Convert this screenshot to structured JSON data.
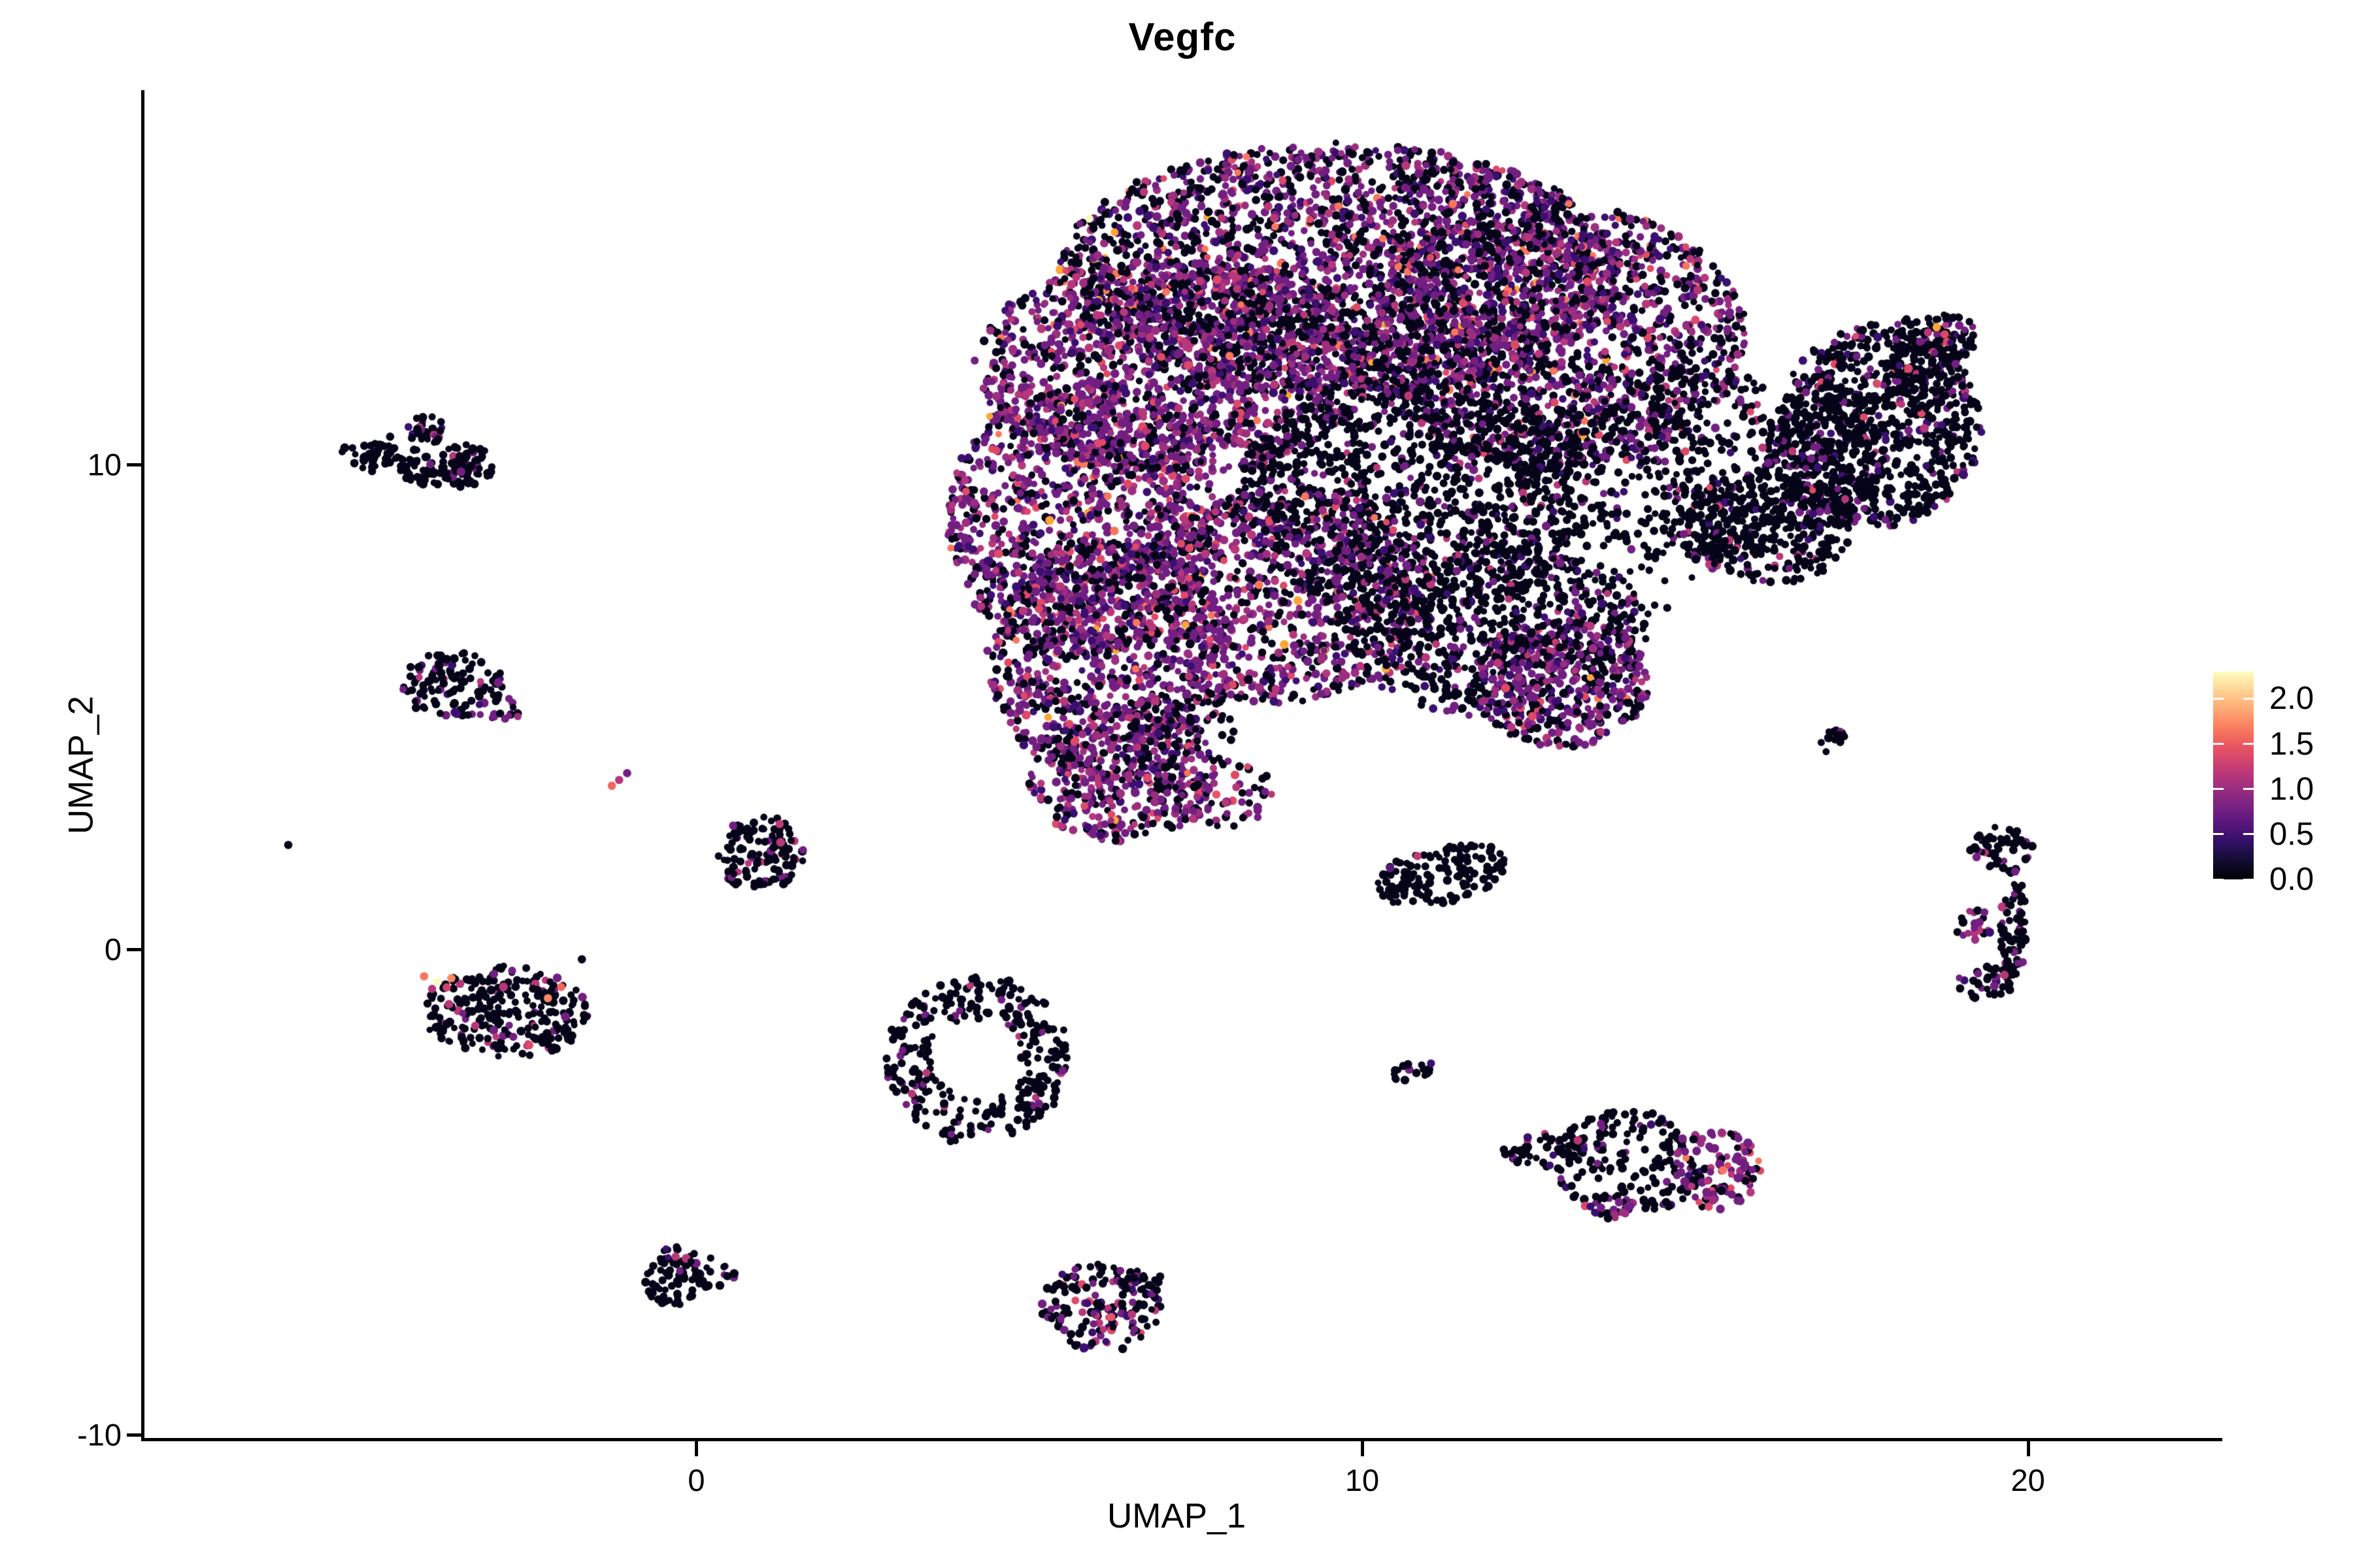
{
  "chart_data": {
    "type": "scatter",
    "title": "Vegfc",
    "xlabel": "UMAP_1",
    "ylabel": "UMAP_2",
    "grid": false,
    "axes": {
      "x": {
        "range": [
          -8.3,
          22.9
        ],
        "ticks": [
          {
            "label": "0",
            "value": 0
          },
          {
            "label": "10",
            "value": 10
          },
          {
            "label": "20",
            "value": 20
          }
        ]
      },
      "y": {
        "range": [
          -10.1,
          17.7
        ],
        "ticks": [
          {
            "label": "10",
            "value": 10
          },
          {
            "label": "0",
            "value": 0
          },
          {
            "label": "-10",
            "value": -10
          }
        ]
      }
    },
    "legend": {
      "position": "right",
      "title": "",
      "values": [
        {
          "label": "2.0",
          "value": 2.0
        },
        {
          "label": "1.5",
          "value": 1.5
        },
        {
          "label": "1.0",
          "value": 1.0
        },
        {
          "label": "0.5",
          "value": 0.5
        },
        {
          "label": "0.0",
          "value": 0.0
        }
      ],
      "value_max": 2.3,
      "colormap_name": "magma",
      "gradient_stops_bottom_to_top": [
        "#000004",
        "#120d31",
        "#331068",
        "#5a167e",
        "#7d2482",
        "#a3307e",
        "#c83e73",
        "#e95462",
        "#f97b5d",
        "#fea973",
        "#fed395",
        "#fcfdbf"
      ]
    },
    "point_radius_px": 5.5,
    "palettes": {
      "mainMix": {
        "#050418": 0.42,
        "#3b0f70": 0.12,
        "#721f81": 0.26,
        "#9c2e7f": 0.1,
        "#b73779": 0.05,
        "#de4968": 0.03,
        "#f8765c": 0.015,
        "#fca636": 0.004,
        "#fcfdbf": 0.001
      },
      "purpleRich": {
        "#050418": 0.3,
        "#3b0f70": 0.12,
        "#721f81": 0.34,
        "#9c2e7f": 0.12,
        "#b73779": 0.07,
        "#de4968": 0.035,
        "#f8765c": 0.012,
        "#fca636": 0.003
      },
      "blackHeavy": {
        "#050418": 0.83,
        "#3b0f70": 0.05,
        "#721f81": 0.09,
        "#b73779": 0.02,
        "#de4968": 0.01
      },
      "blackOnly": {
        "#050418": 1
      },
      "blackSprinkle": {
        "#050418": 0.88,
        "#721f81": 0.09,
        "#b73779": 0.03
      },
      "blackSprinkle2": {
        "#050418": 0.8,
        "#3b0f70": 0.05,
        "#721f81": 0.12,
        "#b73779": 0.03
      },
      "richSmall": {
        "#050418": 0.28,
        "#721f81": 0.38,
        "#9c2e7f": 0.16,
        "#b73779": 0.1,
        "#de4968": 0.06,
        "#f8765c": 0.02
      },
      "richDark": {
        "#050418": 0.55,
        "#3b0f70": 0.08,
        "#721f81": 0.22,
        "#b73779": 0.1,
        "#de4968": 0.05
      }
    },
    "clusters": [
      {
        "name": "main-top-arc",
        "cx": 9.66,
        "cy": 13.99,
        "rx": 4.22,
        "ry": 2.64,
        "n": 2600,
        "palette": "mainMix"
      },
      {
        "name": "main-left-shoulder",
        "cx": 7.11,
        "cy": 12.03,
        "rx": 2.94,
        "ry": 2.23,
        "n": 1250,
        "palette": "purpleRich"
      },
      {
        "name": "main-left-arm",
        "cx": 5.78,
        "cy": 8.85,
        "rx": 2.01,
        "ry": 2.91,
        "n": 1150,
        "palette": "purpleRich"
      },
      {
        "name": "main-left-lower",
        "cx": 6.18,
        "cy": 5.95,
        "rx": 1.81,
        "ry": 2.5,
        "n": 800,
        "palette": "purpleRich"
      },
      {
        "name": "main-left-tip",
        "cx": 6.37,
        "cy": 3.65,
        "rx": 1.42,
        "ry": 1.42,
        "n": 330,
        "palette": "purpleRich"
      },
      {
        "name": "main-right-upper",
        "cx": 12.89,
        "cy": 12.64,
        "rx": 2.89,
        "ry": 2.77,
        "n": 1500,
        "palette": "mainMix"
      },
      {
        "name": "main-right-mid",
        "cx": 14.46,
        "cy": 10.14,
        "rx": 2.3,
        "ry": 2.09,
        "n": 430,
        "palette": "blackHeavy"
      },
      {
        "name": "main-neck",
        "cx": 16.03,
        "cy": 8.65,
        "rx": 1.32,
        "ry": 1.15,
        "n": 330,
        "palette": "blackHeavy"
      },
      {
        "name": "main-belly",
        "cx": 10.74,
        "cy": 9.32,
        "rx": 2.7,
        "ry": 2.36,
        "n": 1000,
        "palette": "blackSprinkle2"
      },
      {
        "name": "main-center-low",
        "cx": 8.82,
        "cy": 7.3,
        "rx": 2.3,
        "ry": 2.23,
        "n": 850,
        "palette": "purpleRich"
      },
      {
        "name": "main-lower-right",
        "cx": 12.01,
        "cy": 6.62,
        "rx": 2.3,
        "ry": 1.82,
        "n": 650,
        "palette": "blackSprinkle2"
      },
      {
        "name": "main-lower-right2",
        "cx": 12.99,
        "cy": 5.54,
        "rx": 1.32,
        "ry": 1.35,
        "n": 430,
        "palette": "purpleRich"
      },
      {
        "name": "main-sparse-fill",
        "cx": 11.81,
        "cy": 9.26,
        "rx": 3.73,
        "ry": 3.38,
        "n": 260,
        "palette": "blackOnly"
      },
      {
        "name": "main-tail",
        "cx": 7.75,
        "cy": 3.24,
        "rx": 0.98,
        "ry": 0.74,
        "n": 90,
        "palette": "richSmall"
      },
      {
        "name": "main-tail-upper",
        "cx": 7.35,
        "cy": 4.53,
        "rx": 0.83,
        "ry": 0.88,
        "n": 60,
        "palette": "blackSprinkle2"
      },
      {
        "name": "right-teardrop",
        "cx": 17.79,
        "cy": 10.81,
        "rx": 1.52,
        "ry": 2.09,
        "n": 700,
        "palette": "blackHeavy"
      },
      {
        "name": "right-teardrop-left",
        "cx": 16.91,
        "cy": 10.2,
        "rx": 0.93,
        "ry": 1.55,
        "n": 250,
        "palette": "blackHeavy"
      },
      {
        "name": "right-teardrop-tiparm",
        "cx": 18.38,
        "cy": 12.09,
        "rx": 0.59,
        "ry": 1.01,
        "n": 120,
        "palette": "blackHeavy"
      },
      {
        "name": "right-teardrop-tip",
        "cx": 18.82,
        "cy": 12.57,
        "rx": 0.44,
        "ry": 0.54,
        "n": 60,
        "palette": "blackHeavy"
      },
      {
        "name": "tl-small-upper",
        "cx": -4.07,
        "cy": 10.72,
        "rx": 0.27,
        "ry": 0.35,
        "n": 30,
        "palette": "blackSprinkle2"
      },
      {
        "name": "tl-small-left",
        "cx": -4.92,
        "cy": 10.2,
        "rx": 0.44,
        "ry": 0.32,
        "n": 40,
        "palette": "blackOnly"
      },
      {
        "name": "tl-small-main",
        "cx": -3.75,
        "cy": 9.99,
        "rx": 0.76,
        "ry": 0.46,
        "n": 110,
        "palette": "blackSprinkle"
      },
      {
        "name": "left-mid-cluster",
        "cx": -3.66,
        "cy": 5.47,
        "rx": 0.76,
        "ry": 0.7,
        "n": 110,
        "palette": "blackSprinkle2"
      },
      {
        "name": "left-mid-tail",
        "cx": -2.93,
        "cy": 4.96,
        "rx": 0.37,
        "ry": 0.22,
        "n": 18,
        "palette": "purpleRich"
      },
      {
        "name": "left-small-cluster",
        "cx": 0.95,
        "cy": 2.0,
        "rx": 0.67,
        "ry": 0.76,
        "n": 120,
        "palette": "blackSprinkle"
      },
      {
        "name": "left-big-cluster",
        "cx": -2.86,
        "cy": -1.31,
        "rx": 1.23,
        "ry": 0.97,
        "n": 260,
        "palette": "blackSprinkle"
      },
      {
        "name": "ring-cluster",
        "cx": 4.22,
        "cy": -2.26,
        "rx": 1.37,
        "ry": 1.76,
        "n": 330,
        "palette": "blackSprinkle",
        "inner": 0.49
      },
      {
        "name": "center-snake",
        "cx": 11.18,
        "cy": 1.55,
        "rx": 1.03,
        "ry": 0.57,
        "n": 130,
        "palette": "blackOnly",
        "rot": 0.35
      },
      {
        "name": "tiny-mid",
        "cx": 10.78,
        "cy": -2.53,
        "rx": 0.33,
        "ry": 0.22,
        "n": 18,
        "palette": "blackSprinkle2",
        "rot": 0.4
      },
      {
        "name": "tiny-right-diag",
        "cx": 17.04,
        "cy": 4.32,
        "rx": 0.29,
        "ry": 0.19,
        "n": 14,
        "palette": "blackSprinkle2",
        "rot": 0.9
      },
      {
        "name": "right-small-top",
        "cx": 19.59,
        "cy": 2.09,
        "rx": 0.47,
        "ry": 0.43,
        "n": 55,
        "palette": "blackSprinkle"
      },
      {
        "name": "right-c-vertical",
        "cx": 19.77,
        "cy": 0.47,
        "rx": 0.2,
        "ry": 1.28,
        "n": 90,
        "palette": "blackSprinkle"
      },
      {
        "name": "right-c-bottom",
        "cx": 19.36,
        "cy": -0.68,
        "rx": 0.44,
        "ry": 0.34,
        "n": 30,
        "palette": "blackSprinkle2"
      },
      {
        "name": "right-c-leftblob",
        "cx": 19.19,
        "cy": 0.47,
        "rx": 0.27,
        "ry": 0.38,
        "n": 20,
        "palette": "purpleRich"
      },
      {
        "name": "br-left-arm",
        "cx": 12.75,
        "cy": -4.15,
        "rx": 0.64,
        "ry": 0.35,
        "n": 45,
        "palette": "blackSprinkle2",
        "rot": 0.1
      },
      {
        "name": "br-middle",
        "cx": 13.97,
        "cy": -4.42,
        "rx": 1.13,
        "ry": 1.11,
        "n": 170,
        "palette": "blackSprinkle2"
      },
      {
        "name": "br-right-lobe",
        "cx": 15.34,
        "cy": -4.53,
        "rx": 0.64,
        "ry": 0.84,
        "n": 110,
        "palette": "richSmall"
      },
      {
        "name": "br-lower-arm",
        "cx": 13.79,
        "cy": -5.3,
        "rx": 0.49,
        "ry": 0.27,
        "n": 25,
        "palette": "purpleRich"
      },
      {
        "name": "bottom-center",
        "cx": 6.08,
        "cy": -7.39,
        "rx": 0.9,
        "ry": 0.89,
        "n": 150,
        "palette": "richDark"
      },
      {
        "name": "bottom-center-arm",
        "cx": 6.67,
        "cy": -6.85,
        "rx": 0.39,
        "ry": 0.3,
        "n": 25,
        "palette": "blackSprinkle2",
        "rot": -0.5
      },
      {
        "name": "bottom-left-blob",
        "cx": -0.32,
        "cy": -6.85,
        "rx": 0.47,
        "ry": 0.49,
        "n": 55,
        "palette": "blackOnly"
      },
      {
        "name": "bottom-left-arm",
        "cx": 0.03,
        "cy": -6.58,
        "rx": 0.69,
        "ry": 0.3,
        "n": 35,
        "palette": "blackSprinkle2",
        "rot": -0.55
      }
    ],
    "highlight_points": [
      {
        "x": 18.63,
        "y": 12.84,
        "c": "#fca636"
      },
      {
        "x": 18.75,
        "y": 12.69,
        "c": "#de4968"
      },
      {
        "x": 18.5,
        "y": 12.73,
        "c": "#b73779"
      },
      {
        "x": 18.38,
        "y": 12.54,
        "c": "#721f81"
      },
      {
        "x": -4.09,
        "y": -0.55,
        "c": "#f8765c"
      },
      {
        "x": -3.89,
        "y": -0.65,
        "c": "#fcfdbf"
      },
      {
        "x": -3.68,
        "y": -0.59,
        "c": "#fb8861"
      },
      {
        "x": -3.75,
        "y": -0.78,
        "c": "#d3436e"
      },
      {
        "x": -3.97,
        "y": -0.81,
        "c": "#b73779"
      },
      {
        "x": -2.03,
        "y": -0.77,
        "c": "#f2665c"
      },
      {
        "x": -2.23,
        "y": -1.0,
        "c": "#fb8861"
      },
      {
        "x": -3.32,
        "y": -1.57,
        "c": "#b73779"
      },
      {
        "x": -2.51,
        "y": -1.97,
        "c": "#de4968"
      },
      {
        "x": -1.27,
        "y": 3.38,
        "c": "#f2665c"
      },
      {
        "x": -1.16,
        "y": 3.5,
        "c": "#b73779"
      },
      {
        "x": -1.04,
        "y": 3.64,
        "c": "#721f81"
      },
      {
        "x": 1.25,
        "y": 2.59,
        "c": "#c03a76"
      },
      {
        "x": 10.83,
        "y": 1.93,
        "c": "#c03a76"
      },
      {
        "x": 10.42,
        "y": 1.68,
        "c": "#5f187f"
      },
      {
        "x": 6.23,
        "y": -7.58,
        "c": "#e8556a"
      },
      {
        "x": 15.42,
        "y": -4.55,
        "c": "#f8765c"
      },
      {
        "x": 7.81,
        "y": 3.2,
        "c": "#e8556a"
      },
      {
        "x": 7.95,
        "y": 3.03,
        "c": "#b73779"
      },
      {
        "x": 9.97,
        "y": 5.85,
        "c": "#b73779"
      },
      {
        "x": -6.13,
        "y": 2.16,
        "c": "#050418"
      },
      {
        "x": -4.6,
        "y": 10.58,
        "c": "#050418"
      },
      {
        "x": -1.72,
        "y": -0.2,
        "c": "#050418"
      }
    ]
  }
}
